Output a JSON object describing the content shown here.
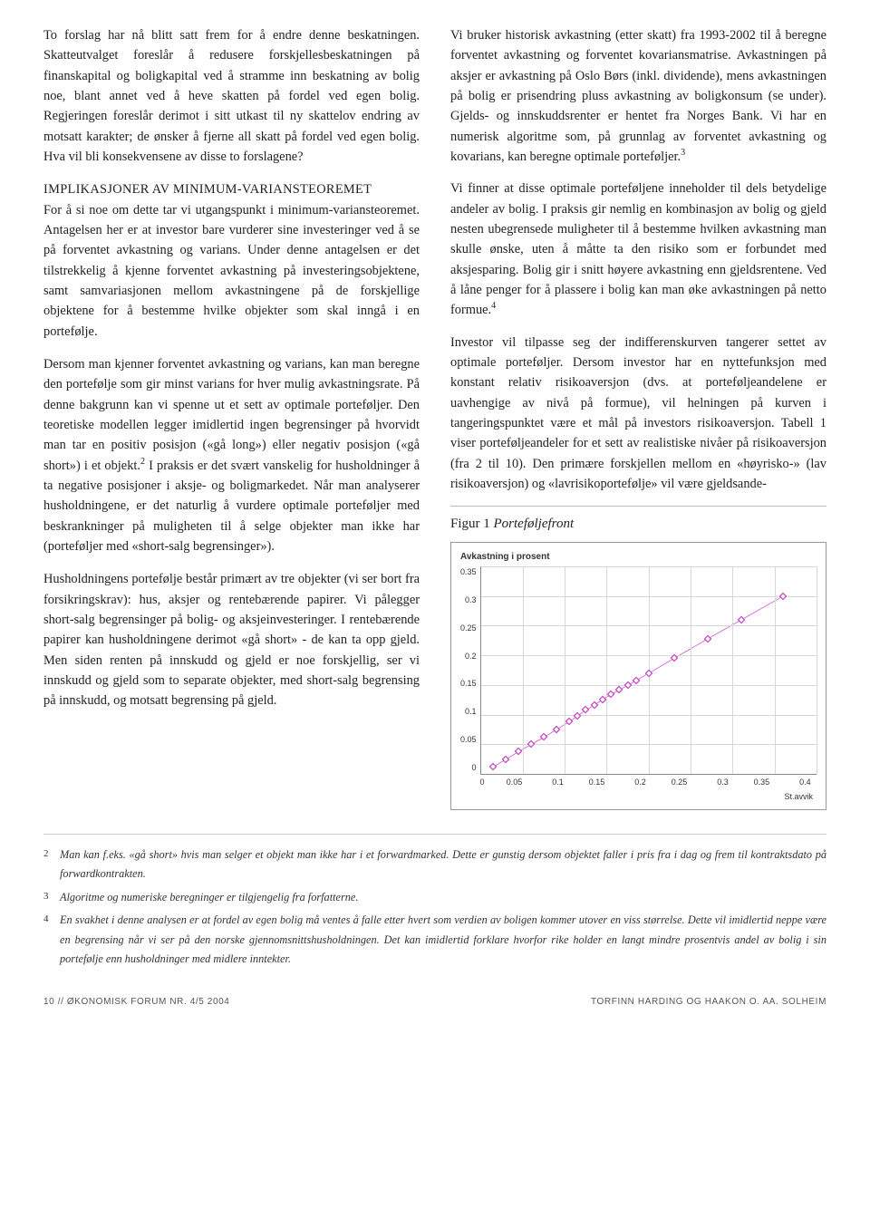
{
  "left_column": {
    "p1": "To forslag har nå blitt satt frem for å endre denne beskatningen. Skatteutvalget foreslår å redusere forskjellesbeskatningen på finanskapital og boligkapital ved å stramme inn beskatning av bolig noe, blant annet ved å heve skatten på fordel ved egen bolig. Regjeringen foreslår derimot i sitt utkast til ny skattelov endring av motsatt karakter; de ønsker å fjerne all skatt på fordel ved egen bolig. Hva vil bli konsekvensene av disse to forslagene?",
    "subhead": "IMPLIKASJONER AV MINIMUM-VARIANSTEOREMET",
    "p2": "For å si noe om dette tar vi utgangspunkt i minimum-variansteoremet. Antagelsen her er at investor bare vurderer sine investeringer ved å se på forventet avkastning og varians. Under denne antagelsen er det tilstrekkelig å kjenne forventet avkastning på investeringsobjektene, samt samvariasjonen mellom avkastningene på de forskjellige objektene for å bestemme hvilke objekter som skal inngå i en portefølje.",
    "p3a": "Dersom man kjenner forventet avkastning og varians, kan man beregne den portefølje som gir minst varians for hver mulig avkastningsrate. På denne bakgrunn kan vi spenne ut et sett av optimale porteføljer. Den teoretiske modellen legger imidlertid ingen begrensinger på hvorvidt man tar en positiv posisjon («gå long») eller negativ posisjon («gå short») i et objekt.",
    "p3_sup": "2",
    "p3b": " I praksis er det svært vanskelig for husholdninger å ta negative posisjoner i aksje- og boligmarkedet. Når man analyserer husholdningene, er det naturlig å vurdere optimale porteføljer med beskrankninger på muligheten til å selge objekter man ikke har (porteføljer med «short-salg begrensinger»).",
    "p4": "Husholdningens portefølje består primært av tre objekter (vi ser bort fra forsikringskrav): hus, aksjer og rentebærende papirer. Vi pålegger short-salg begrensinger på bolig- og aksjeinvesteringer. I rentebærende papirer kan husholdningene derimot «gå short» - de kan ta opp gjeld. Men siden renten på innskudd og gjeld er noe forskjellig, ser vi innskudd og gjeld som to separate objekter, med short-salg begrensing på innskudd, og motsatt begrensing på gjeld."
  },
  "right_column": {
    "p1a": "Vi bruker historisk avkastning (etter skatt) fra 1993-2002 til å beregne forventet avkastning og forventet kovariansmatrise. Avkastningen på aksjer er avkastning på Oslo Børs (inkl. dividende), mens avkastningen på bolig er prisendring pluss avkastning av boligkonsum (se under). Gjelds- og innskuddsrenter er hentet fra Norges Bank. Vi har en numerisk algoritme som, på grunnlag av forventet avkastning og kovarians, kan beregne optimale porteføljer.",
    "p1_sup": "3",
    "p2a": "Vi finner at disse optimale porteføljene inneholder til dels betydelige andeler av bolig. I praksis gir nemlig en kombinasjon av bolig og gjeld nesten ubegrensede muligheter til å bestemme hvilken avkastning man skulle ønske, uten å måtte ta den risiko som er forbundet med aksjesparing. Bolig gir i snitt høyere avkastning enn gjeldsrentene. Ved å låne penger for å plassere i bolig kan man øke avkastningen på netto formue.",
    "p2_sup": "4",
    "p3": "Investor vil tilpasse seg der indifferenskurven tangerer settet av optimale porteføljer. Dersom investor har en nyttefunksjon med konstant relativ risikoaversjon (dvs. at porteføljeandelene er uavhengige av nivå på formue), vil helningen på kurven i tangeringspunktet være et mål på investors risikoaversjon. Tabell 1 viser porteføljeandeler for et sett av realistiske nivåer på risikoaversjon (fra 2 til 10). Den primære forskjellen mellom en «høyrisko-» (lav risikoaversjon) og «lavrisikoportefølje» vil være gjeldsande-",
    "figure": {
      "label": "Figur 1",
      "title": "Porteføljefront",
      "ylabel": "Avkastning i prosent",
      "xlabel": "St.avvik",
      "xlim": [
        0,
        0.4
      ],
      "ylim": [
        0,
        0.35
      ],
      "xticks": [
        "0",
        "0.05",
        "0.1",
        "0.15",
        "0.2",
        "0.25",
        "0.3",
        "0.35",
        "0.4"
      ],
      "yticks": [
        "0.35",
        "0.3",
        "0.25",
        "0.2",
        "0.15",
        "0.1",
        "0.05",
        "0"
      ],
      "grid_color": "#d8d8d8",
      "axis_color": "#888888",
      "marker_color": "#c020c0",
      "line_color": "#c020c0",
      "background": "#ffffff",
      "points": [
        [
          0.015,
          0.012
        ],
        [
          0.03,
          0.025
        ],
        [
          0.045,
          0.038
        ],
        [
          0.06,
          0.05
        ],
        [
          0.075,
          0.062
        ],
        [
          0.09,
          0.075
        ],
        [
          0.105,
          0.088
        ],
        [
          0.115,
          0.098
        ],
        [
          0.125,
          0.108
        ],
        [
          0.135,
          0.116
        ],
        [
          0.145,
          0.126
        ],
        [
          0.155,
          0.134
        ],
        [
          0.165,
          0.142
        ],
        [
          0.175,
          0.15
        ],
        [
          0.185,
          0.158
        ],
        [
          0.2,
          0.17
        ],
        [
          0.23,
          0.195
        ],
        [
          0.27,
          0.228
        ],
        [
          0.31,
          0.26
        ],
        [
          0.36,
          0.3
        ]
      ]
    }
  },
  "footnotes": {
    "n2": "Man kan f.eks. «gå short» hvis man selger et objekt man ikke har i et forwardmarked. Dette er gunstig dersom objektet faller i pris fra i dag og frem til kontraktsdato på forwardkontrakten.",
    "n3": "Algoritme og numeriske beregninger er tilgjengelig fra forfatterne.",
    "n4": "En svakhet i denne analysen er at fordel av egen bolig må ventes å falle etter hvert som verdien av boligen kommer utover en viss størrelse. Dette vil imidlertid neppe være en begrensing når vi ser på den norske gjennomsnittshusholdningen. Det kan imidlertid forklare hvorfor rike holder en langt mindre prosentvis andel av bolig i sin portefølje enn husholdninger med midlere inntekter."
  },
  "footer": {
    "left": "10 // ØKONOMISK FORUM NR. 4/5 2004",
    "right": "TORFINN HARDING OG HAAKON O. AA. SOLHEIM"
  }
}
